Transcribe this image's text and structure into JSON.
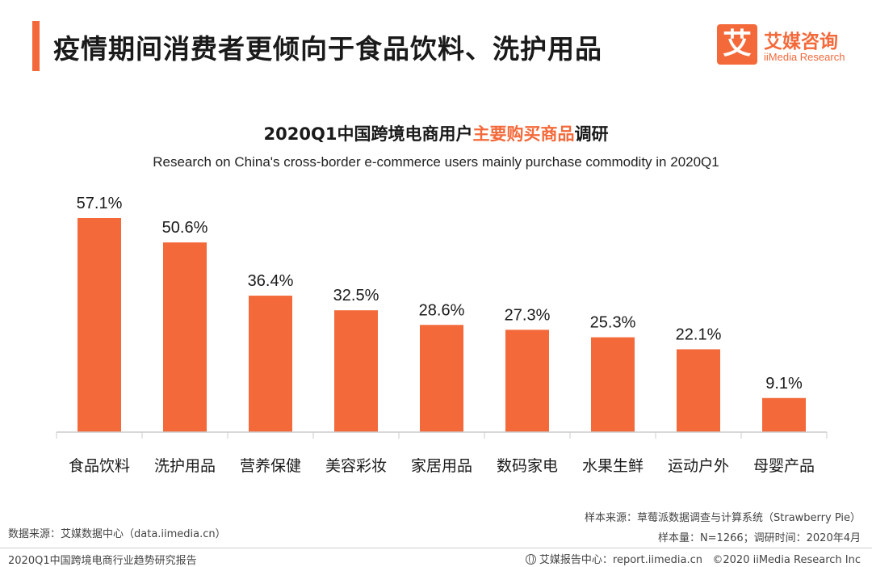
{
  "header": {
    "title": "疫情期间消费者更倾向于食品饮料、洗护用品",
    "logo_mark": "艾",
    "logo_cn": "艾媒咨询",
    "logo_en": "iiMedia Research"
  },
  "chart_data": {
    "type": "bar",
    "title_pre": "2020Q1中国跨境电商用户",
    "title_highlight": "主要购买商品",
    "title_post": "调研",
    "subtitle": "Research on China's cross-border e-commerce users mainly purchase commodity in 2020Q1",
    "categories": [
      "食品饮料",
      "洗护用品",
      "营养保健",
      "美容彩妆",
      "家居用品",
      "数码家电",
      "水果生鲜",
      "运动户外",
      "母婴产品"
    ],
    "values": [
      57.1,
      50.6,
      36.4,
      32.5,
      28.6,
      27.3,
      25.3,
      22.1,
      9.1
    ],
    "value_labels": [
      "57.1%",
      "50.6%",
      "36.4%",
      "32.5%",
      "28.6%",
      "27.3%",
      "25.3%",
      "22.1%",
      "9.1%"
    ],
    "unit": "%",
    "ylim": [
      0,
      57.1
    ],
    "bar_color": "#f4693a",
    "axis_color": "#cccccc"
  },
  "footer": {
    "source": "数据来源：艾媒数据中心（data.iimedia.cn）",
    "sample_source": "样本来源：草莓派数据调查与计算系统（Strawberry Pie）",
    "sample_info": "样本量：N=1266；调研时间：2020年4月",
    "report_name": "2020Q1中国跨境电商行业趋势研究报告",
    "report_center": "艾媒报告中心：report.iimedia.cn",
    "copyright": "©2020  iiMedia Research  Inc"
  }
}
